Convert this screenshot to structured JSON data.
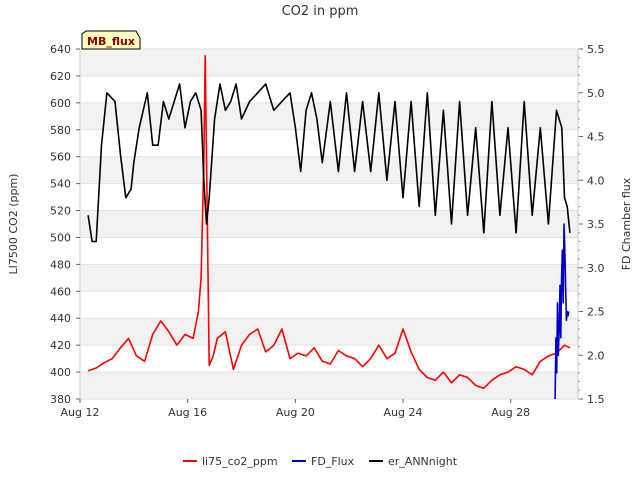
{
  "chart_data": {
    "type": "line",
    "title": "CO2 in ppm",
    "badge": "MB_flux",
    "ylabel_left": "LI7500 CO2 (ppm)",
    "ylabel_right": "FD Chamber flux",
    "xlim": [
      0,
      18.5
    ],
    "ylim_left": [
      380,
      640
    ],
    "ylim_right": [
      1.5,
      5.5
    ],
    "x_ticks": [
      {
        "value": 0,
        "label": "Aug 12"
      },
      {
        "value": 4,
        "label": "Aug 16"
      },
      {
        "value": 8,
        "label": "Aug 20"
      },
      {
        "value": 12,
        "label": "Aug 24"
      },
      {
        "value": 16,
        "label": "Aug 28"
      }
    ],
    "y_ticks_left": [
      380,
      400,
      420,
      440,
      460,
      480,
      500,
      520,
      540,
      560,
      580,
      600,
      620,
      640
    ],
    "y_ticks_right": [
      "1.5",
      "2.0",
      "2.5",
      "3.0",
      "3.5",
      "4.0",
      "4.5",
      "5.0",
      "5.5"
    ],
    "grid": true,
    "legend_position": "bottom",
    "series": [
      {
        "name": "li75_co2_ppm",
        "axis": "left",
        "color": "#ff0000",
        "x": [
          0.3,
          0.6,
          0.9,
          1.2,
          1.5,
          1.8,
          2.1,
          2.4,
          2.7,
          3.0,
          3.3,
          3.6,
          3.9,
          4.2,
          4.4,
          4.5,
          4.6,
          4.65,
          4.7,
          4.8,
          4.95,
          5.1,
          5.4,
          5.7,
          6.0,
          6.3,
          6.6,
          6.9,
          7.2,
          7.5,
          7.8,
          8.1,
          8.4,
          8.7,
          9.0,
          9.3,
          9.6,
          9.9,
          10.2,
          10.5,
          10.8,
          11.1,
          11.4,
          11.7,
          12.0,
          12.3,
          12.6,
          12.9,
          13.2,
          13.5,
          13.8,
          14.1,
          14.4,
          14.7,
          15.0,
          15.3,
          15.6,
          15.9,
          16.2,
          16.5,
          16.8,
          17.1,
          17.4,
          17.7,
          18.0,
          18.2
        ],
        "y": [
          401,
          403,
          407,
          410,
          418,
          425,
          412,
          408,
          428,
          438,
          430,
          420,
          428,
          425,
          445,
          470,
          555,
          635,
          560,
          405,
          412,
          425,
          430,
          402,
          420,
          428,
          432,
          415,
          420,
          432,
          410,
          414,
          412,
          418,
          408,
          406,
          416,
          412,
          410,
          404,
          410,
          420,
          410,
          414,
          432,
          415,
          402,
          396,
          394,
          400,
          392,
          398,
          396,
          390,
          388,
          394,
          398,
          400,
          404,
          402,
          398,
          408,
          412,
          414,
          420,
          418
        ]
      },
      {
        "name": "FD_Flux",
        "axis": "right",
        "color": "#0000cc",
        "x": [
          17.65,
          17.68,
          17.71,
          17.74,
          17.77,
          17.8,
          17.83,
          17.86,
          17.89,
          17.92,
          17.95,
          17.98,
          18.01,
          18.04,
          18.07,
          18.1,
          18.13,
          18.16
        ],
        "y": [
          1.5,
          2.2,
          1.8,
          2.6,
          2.0,
          2.3,
          2.8,
          2.2,
          2.9,
          3.2,
          2.6,
          3.5,
          3.2,
          2.8,
          2.4,
          2.5,
          2.45,
          2.5
        ]
      },
      {
        "name": "er_ANNnight",
        "axis": "right",
        "color": "#000000",
        "x": [
          0.3,
          0.45,
          0.6,
          0.8,
          1.0,
          1.3,
          1.5,
          1.7,
          1.9,
          2.0,
          2.2,
          2.5,
          2.7,
          2.9,
          3.1,
          3.3,
          3.5,
          3.7,
          3.9,
          4.1,
          4.3,
          4.5,
          4.6,
          4.7,
          4.8,
          5.0,
          5.2,
          5.4,
          5.6,
          5.8,
          6.0,
          6.3,
          6.6,
          6.9,
          7.2,
          7.5,
          7.8,
          8.0,
          8.2,
          8.4,
          8.6,
          8.8,
          9.0,
          9.3,
          9.6,
          9.9,
          10.2,
          10.5,
          10.8,
          11.1,
          11.4,
          11.7,
          12.0,
          12.3,
          12.6,
          12.9,
          13.2,
          13.5,
          13.8,
          14.1,
          14.4,
          14.7,
          15.0,
          15.3,
          15.6,
          15.9,
          16.2,
          16.5,
          16.8,
          17.1,
          17.4,
          17.7,
          17.9,
          18.0,
          18.1,
          18.2
        ],
        "y": [
          3.6,
          3.3,
          3.3,
          4.4,
          5.0,
          4.9,
          4.3,
          3.8,
          3.9,
          4.2,
          4.6,
          5.0,
          4.4,
          4.4,
          4.9,
          4.7,
          4.9,
          5.1,
          4.6,
          4.9,
          5.0,
          4.8,
          4.0,
          3.5,
          3.8,
          4.7,
          5.1,
          4.8,
          4.9,
          5.1,
          4.7,
          4.9,
          5.0,
          5.1,
          4.8,
          4.9,
          5.0,
          4.6,
          4.1,
          4.8,
          5.0,
          4.7,
          4.2,
          4.9,
          4.1,
          5.0,
          4.1,
          4.9,
          4.1,
          5.0,
          4.0,
          4.9,
          3.8,
          4.9,
          3.7,
          5.0,
          3.6,
          4.8,
          3.5,
          4.9,
          3.6,
          4.6,
          3.4,
          4.9,
          3.6,
          4.6,
          3.4,
          4.9,
          3.6,
          4.6,
          3.5,
          4.8,
          4.6,
          3.8,
          3.7,
          3.4
        ]
      }
    ]
  }
}
